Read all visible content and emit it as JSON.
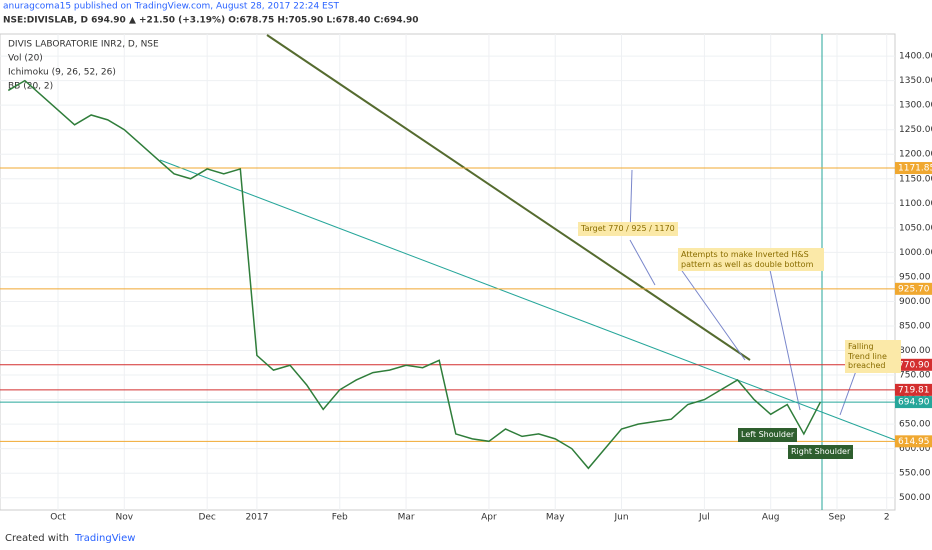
{
  "chart_data": {
    "type": "line",
    "header": "anuragcoma15 published on TradingView.com, August 28, 2017 22:24 EST",
    "quote": "NSE:DIVISLAB, D  694.90 ▲ +21.50 (+3.19%)  O:678.75  H:705.90  L:678.40  C:694.90",
    "title": "DIVIS LABORATORIE INR2, D, NSE",
    "indicators": [
      "Vol (20)",
      "Ichimoku (9, 26, 52, 26)",
      "BB (20, 2)"
    ],
    "categories": [
      null,
      null,
      null,
      "Oct",
      null,
      null,
      null,
      "Nov",
      null,
      null,
      null,
      null,
      "Dec",
      null,
      null,
      "2017",
      null,
      null,
      null,
      null,
      "Feb",
      null,
      null,
      null,
      "Mar",
      null,
      null,
      null,
      null,
      "Apr",
      null,
      null,
      null,
      "May",
      null,
      null,
      null,
      "Jun",
      null,
      null,
      null,
      null,
      "Jul",
      null,
      null,
      null,
      "Aug",
      null,
      null,
      null,
      "Sep",
      null,
      null,
      "2"
    ],
    "series": [
      {
        "color": "#2f7d3a",
        "values": [
          1330,
          1350,
          1320,
          1290,
          1260,
          1280,
          1270,
          1250,
          1220,
          1190,
          1160,
          1150,
          1170,
          1160,
          1170,
          790,
          760,
          770,
          730,
          680,
          720,
          740,
          755,
          760,
          770,
          765,
          780,
          630,
          620,
          615,
          640,
          625,
          630,
          620,
          600,
          560,
          600,
          640,
          650,
          655,
          660,
          690,
          700,
          720,
          740,
          700,
          670,
          690,
          630,
          695,
          null,
          null,
          null,
          null
        ]
      }
    ],
    "ylim": [
      475,
      1445
    ],
    "yticks": [
      {
        "value": 500,
        "label": "500.00"
      },
      {
        "value": 550,
        "label": "550.00"
      },
      {
        "value": 600,
        "label": "600.00"
      },
      {
        "value": 650,
        "label": "650.00"
      },
      {
        "value": 700,
        "label": "700.00"
      },
      {
        "value": 750,
        "label": "750.00"
      },
      {
        "value": 800,
        "label": "800.00"
      },
      {
        "value": 850,
        "label": "850.00"
      },
      {
        "value": 900,
        "label": "900.00"
      },
      {
        "value": 950,
        "label": "950.00"
      },
      {
        "value": 1000,
        "label": "1000.00"
      },
      {
        "value": 1050,
        "label": "1050.00"
      },
      {
        "value": 1100,
        "label": "1100.00"
      },
      {
        "value": 1150,
        "label": "1150.00"
      },
      {
        "value": 1200,
        "label": "1200.00"
      },
      {
        "value": 1250,
        "label": "1250.00"
      },
      {
        "value": 1300,
        "label": "1300.00"
      },
      {
        "value": 1350,
        "label": "1350.00"
      },
      {
        "value": 1400,
        "label": "1400.00"
      }
    ],
    "grid": true,
    "levels": [
      {
        "value": 1171.85,
        "color": "#f0a830"
      },
      {
        "value": 925.7,
        "label": "925.70",
        "color": "#f0a830"
      },
      {
        "value": 770.9,
        "label": "770.90",
        "color": "#d32f2f"
      },
      {
        "value": 719.81,
        "color": "#d32f2f"
      },
      {
        "value": 694.9,
        "label": "694.90",
        "color": "#26a69a"
      },
      {
        "value": 614.95,
        "color": "#f0a830"
      }
    ],
    "annotations": [
      "Target 770 / 925 / 1170",
      "Attempts to make Inverted H&S pattern as well as double bottom",
      "Falling Trend line breached",
      "Left Shoulder",
      "Right Shoulder"
    ],
    "footer": [
      "Created with",
      "TradingView"
    ]
  }
}
